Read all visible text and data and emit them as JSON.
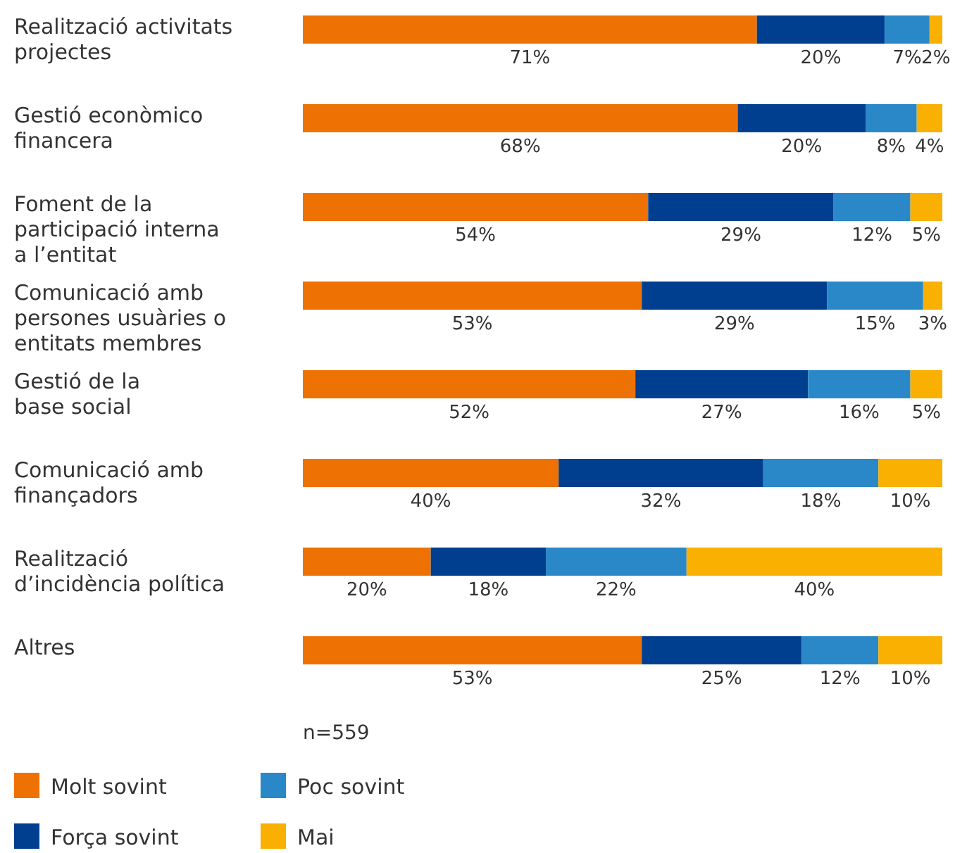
{
  "chart_data": {
    "type": "bar",
    "orientation": "horizontal",
    "stacked": true,
    "legend": "bottom",
    "categories": [
      "Realització activitats\nprojectes",
      "Gestió econòmico\nfinancera",
      "Foment de la\nparticipació interna\na l’entitat",
      "Comunicació amb\npersones usuàries o\nentitats membres",
      "Gestió de la\nbase social",
      "Comunicació amb\nfinançadors",
      "Realització\nd’incidència política",
      "Altres"
    ],
    "series": [
      {
        "name": "Molt sovint",
        "color": "#ee7203",
        "values": [
          71,
          68,
          54,
          53,
          52,
          40,
          20,
          53
        ],
        "value_labels": [
          "71%",
          "68%",
          "54%",
          "53%",
          "52%",
          "40%",
          "20%",
          "53%"
        ]
      },
      {
        "name": "Força sovint",
        "color": "#003f8f",
        "values": [
          20,
          20,
          29,
          29,
          27,
          32,
          18,
          25
        ],
        "value_labels": [
          "20%",
          "20%",
          "29%",
          "29%",
          "27%",
          "32%",
          "18%",
          "25%"
        ]
      },
      {
        "name": "Poc sovint",
        "color": "#2a88c8",
        "values": [
          7,
          8,
          12,
          15,
          16,
          18,
          22,
          12
        ],
        "value_labels": [
          "7%",
          "8%",
          "12%",
          "15%",
          "16%",
          "18%",
          "22%",
          "12%"
        ]
      },
      {
        "name": "Mai",
        "color": "#f9b000",
        "values": [
          2,
          4,
          5,
          3,
          5,
          10,
          40,
          10
        ],
        "value_labels": [
          "2%",
          "4%",
          "5%",
          "3%",
          "5%",
          "10%",
          "40%",
          "10%"
        ]
      }
    ],
    "annotations": [
      "n=559"
    ]
  }
}
